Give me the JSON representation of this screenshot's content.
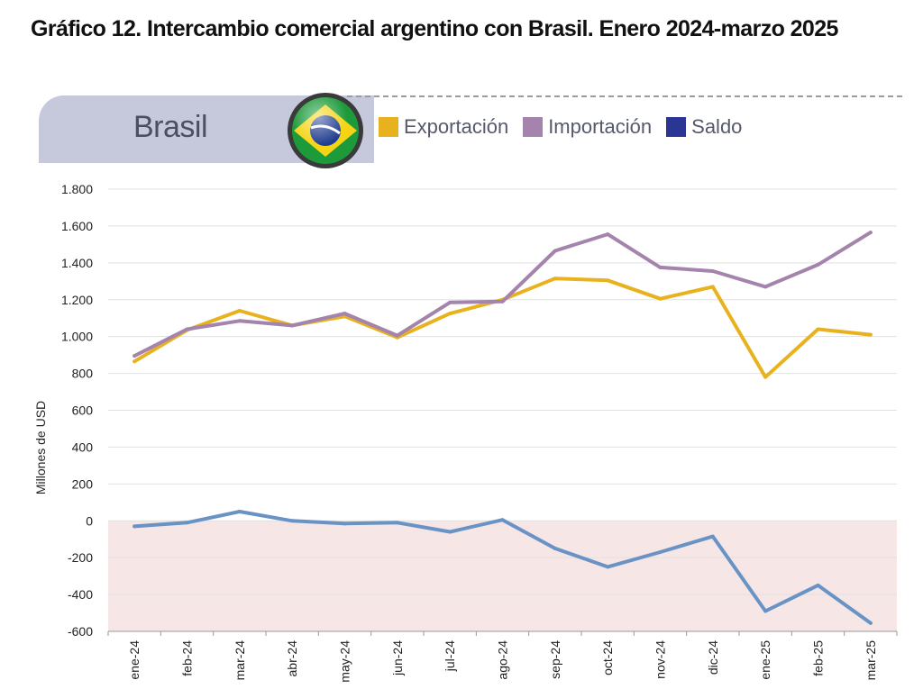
{
  "title": "Gráfico 12. Intercambio comercial argentino con Brasil. Enero 2024-marzo 2025",
  "panel": {
    "country": "Brasil",
    "flag_icon": "brazil-flag-icon"
  },
  "chart_data": {
    "type": "line",
    "categories": [
      "ene-24",
      "feb-24",
      "mar-24",
      "abr-24",
      "may-24",
      "jun-24",
      "jul-24",
      "ago-24",
      "sep-24",
      "oct-24",
      "nov-24",
      "dic-24",
      "ene-25",
      "feb-25",
      "mar-25"
    ],
    "series": [
      {
        "name": "Exportación",
        "color": "#e8b21e",
        "values": [
          865,
          1035,
          1140,
          1060,
          1110,
          995,
          1125,
          1200,
          1315,
          1305,
          1205,
          1270,
          780,
          1040,
          1010
        ]
      },
      {
        "name": "Importación",
        "color": "#a484ac",
        "values": [
          895,
          1040,
          1085,
          1060,
          1125,
          1005,
          1185,
          1190,
          1465,
          1555,
          1375,
          1355,
          1270,
          1390,
          1565
        ]
      },
      {
        "name": "Saldo",
        "color": "#6a93c5",
        "legend_color": "#2a3594",
        "values": [
          -30,
          -10,
          50,
          0,
          -15,
          -10,
          -60,
          5,
          -150,
          -250,
          -170,
          -85,
          -490,
          -350,
          -555
        ]
      }
    ],
    "ylabel": "Millones de USD",
    "xlabel": "",
    "ylim": [
      -600,
      1800
    ],
    "yticks": [
      1800,
      1600,
      1400,
      1200,
      1000,
      800,
      600,
      400,
      200,
      0,
      -200,
      -400,
      -600
    ],
    "ytick_labels": [
      "1.800",
      "1.600",
      "1.400",
      "1.200",
      "1.000",
      "800",
      "600",
      "400",
      "200",
      "0",
      "-200",
      "-400",
      "-600"
    ],
    "negative_region_color": "#f7e6e6",
    "grid": true,
    "legend_position": "top"
  }
}
